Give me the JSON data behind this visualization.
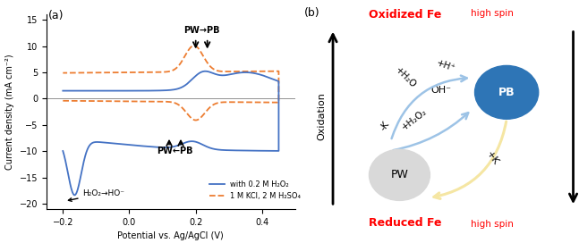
{
  "panel_a_label": "(a)",
  "panel_b_label": "(b)",
  "xlabel": "Potential vs. Ag/AgCl (V)",
  "ylabel": "Current density (mA cm⁻²)",
  "xlim": [
    -0.25,
    0.5
  ],
  "ylim": [
    -21,
    16
  ],
  "xticks": [
    -0.2,
    0.0,
    0.2,
    0.4
  ],
  "yticks": [
    -20,
    -15,
    -10,
    -5,
    0,
    5,
    10,
    15
  ],
  "legend1": "with 0.2 M H₂O₂",
  "legend2": "1 M KCl, 2 M H₂SO₄",
  "line_color": "#4472c4",
  "dashed_color": "#ed7d31",
  "pb_circle_color": "#2e75b6",
  "pw_circle_color": "#d9d9d9",
  "curve_arrow_color_blue": "#9dc3e6",
  "curve_arrow_color_yellow": "#f5e6a3"
}
